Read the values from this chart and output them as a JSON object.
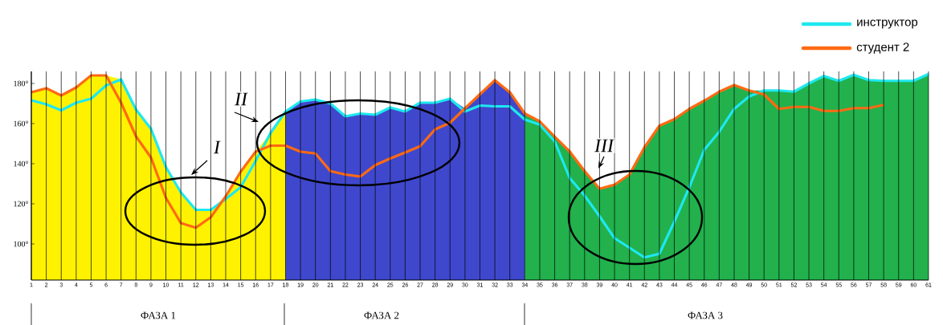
{
  "chart_data": {
    "type": "line",
    "x": [
      1,
      2,
      3,
      4,
      5,
      6,
      7,
      8,
      9,
      10,
      11,
      12,
      13,
      14,
      15,
      16,
      17,
      18,
      19,
      20,
      21,
      22,
      23,
      24,
      25,
      26,
      27,
      28,
      29,
      30,
      31,
      32,
      33,
      34,
      35,
      36,
      37,
      38,
      39,
      40,
      41,
      42,
      43,
      44,
      45,
      46,
      47,
      48,
      49,
      50,
      51,
      52,
      53,
      54,
      55,
      56,
      57,
      58,
      59,
      60,
      61
    ],
    "series": [
      {
        "type": "area",
        "color": "#fff200",
        "values": [
          175.6,
          177.6,
          174,
          178,
          184,
          184,
          182,
          167,
          157.4,
          138.3,
          125.7,
          117,
          117,
          123.7,
          136,
          146,
          155.3,
          166,
          null,
          null,
          null,
          null,
          null,
          null,
          null,
          null,
          null,
          null,
          null,
          null,
          null,
          null,
          null,
          null,
          null,
          null,
          null,
          null,
          null,
          null,
          null,
          null,
          null,
          null,
          null,
          null,
          null,
          null,
          null,
          null,
          null,
          null,
          null,
          null,
          null,
          null,
          null,
          null,
          null,
          null,
          null
        ]
      },
      {
        "type": "area",
        "color": "#3f48cc",
        "values": [
          null,
          null,
          null,
          null,
          null,
          null,
          null,
          null,
          null,
          null,
          null,
          null,
          null,
          null,
          null,
          null,
          null,
          166,
          171,
          172,
          170,
          163.6,
          165,
          164.4,
          168,
          166,
          170.4,
          170.4,
          172.4,
          167.6,
          174.6,
          181.6,
          175.6,
          165,
          null,
          null,
          null,
          null,
          null,
          null,
          null,
          null,
          null,
          null,
          null,
          null,
          null,
          null,
          null,
          null,
          null,
          null,
          null,
          null,
          null,
          null,
          null,
          null,
          null,
          null,
          null
        ]
      },
      {
        "type": "area",
        "color": "#22b14c",
        "values": [
          null,
          null,
          null,
          null,
          null,
          null,
          null,
          null,
          null,
          null,
          null,
          null,
          null,
          null,
          null,
          null,
          null,
          null,
          null,
          null,
          null,
          null,
          null,
          null,
          null,
          null,
          null,
          null,
          null,
          null,
          null,
          null,
          null,
          165,
          161.1,
          153.5,
          146.1,
          136.3,
          127.5,
          129.5,
          134.6,
          148.1,
          158.9,
          162.2,
          167.3,
          171.4,
          175.9,
          179.2,
          176.5,
          176.5,
          176.5,
          175.9,
          180,
          183.7,
          181.3,
          184.3,
          181.7,
          181.3,
          181.3,
          181.3,
          184.7
        ]
      },
      {
        "name": "инструктор",
        "color": "#1ee8f0",
        "values": [
          171.6,
          169.6,
          166.6,
          170.4,
          172.4,
          179,
          182,
          167,
          157.4,
          138.3,
          125.7,
          117,
          117,
          122.4,
          128.3,
          141.4,
          155.3,
          166,
          171,
          172,
          170,
          163.6,
          165,
          164.4,
          168,
          166,
          170.4,
          170.4,
          172.4,
          166,
          169,
          168.6,
          168.6,
          162,
          159.5,
          151.1,
          132.9,
          124.1,
          113.8,
          102.9,
          98.1,
          93.3,
          95.1,
          111.1,
          128.2,
          146.9,
          155.9,
          167.3,
          173.5,
          176.5,
          176.5,
          175.9,
          180,
          183.7,
          181.3,
          184.3,
          181.7,
          181.3,
          181.3,
          181.3,
          184.7
        ]
      },
      {
        "name": "студент 2",
        "color": "#ff6a13",
        "values": [
          175.6,
          177.6,
          174,
          178,
          184,
          184,
          170.4,
          153.6,
          143.1,
          123,
          110.4,
          108.1,
          113.3,
          123.7,
          136,
          146,
          149,
          149,
          146,
          145.1,
          136.3,
          134.6,
          133.6,
          139.3,
          142.6,
          145.6,
          148.7,
          157.1,
          160.4,
          167.6,
          174.6,
          181.6,
          175.6,
          165,
          161.1,
          153.5,
          146.1,
          136.3,
          127.5,
          129.5,
          134.6,
          148.1,
          158.9,
          162.2,
          167.3,
          171.4,
          175.9,
          179.2,
          176.5,
          174.5,
          167.3,
          168.3,
          168.3,
          166.3,
          166.3,
          167.7,
          167.7,
          169.3,
          null,
          null,
          null
        ]
      }
    ],
    "xlim": [
      1,
      61
    ],
    "xticks": [
      1,
      2,
      3,
      4,
      5,
      6,
      7,
      8,
      9,
      10,
      11,
      12,
      13,
      14,
      15,
      16,
      17,
      18,
      19,
      20,
      21,
      22,
      23,
      24,
      25,
      26,
      27,
      28,
      29,
      30,
      31,
      32,
      33,
      34,
      35,
      36,
      37,
      38,
      39,
      40,
      41,
      42,
      43,
      44,
      45,
      46,
      47,
      48,
      49,
      50,
      51,
      52,
      53,
      54,
      55,
      56,
      57,
      58,
      59,
      60,
      61
    ],
    "ylim": [
      82,
      186
    ],
    "yticks": [
      {
        "value": 100,
        "label": "100°"
      },
      {
        "value": 120,
        "label": "120°"
      },
      {
        "value": 140,
        "label": "140°"
      },
      {
        "value": 160,
        "label": "160°"
      },
      {
        "value": 180,
        "label": "180°"
      }
    ],
    "grid": "x",
    "legend": "top right",
    "annotations": [
      "I",
      "II",
      "III",
      "ФАЗА 1",
      "ФАЗА 2",
      "ФАЗА 3"
    ]
  }
}
